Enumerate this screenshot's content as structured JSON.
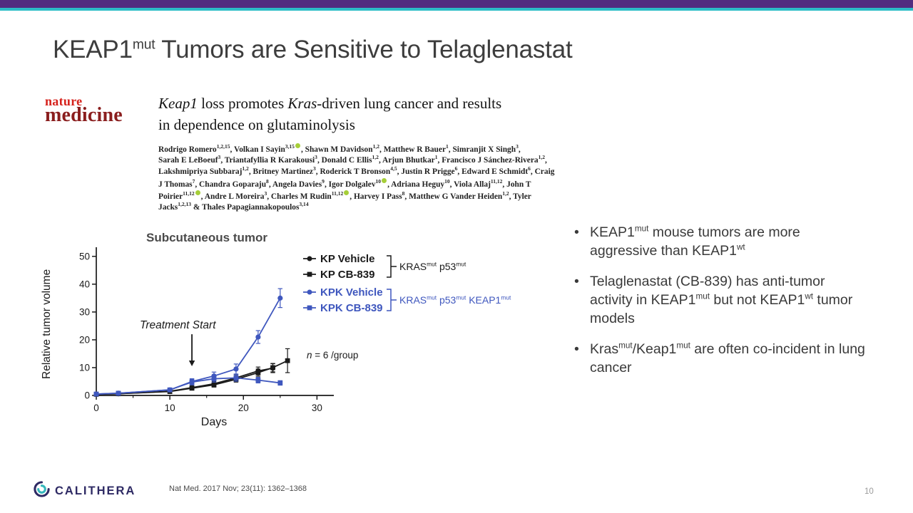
{
  "slide": {
    "title": "KEAP1^{mut} Tumors are Sensitive to Telaglenastat"
  },
  "theme": {
    "top_bar_color": "#522D80",
    "accent_line_color": "#2DBEC7",
    "title_color": "#3D3D3D",
    "text_color": "#3A3A3A",
    "nature_red": "#D6221C",
    "medicine_maroon": "#8A1E1E",
    "calithera_navy": "#2E2A64",
    "calithera_teal": "#35B7BC",
    "orcid_green": "#A6CE39"
  },
  "paper": {
    "journal_top": "nature",
    "journal_bottom": "medicine",
    "title_line1": "~{Keap1} loss promotes ~{Kras}-driven lung cancer and results",
    "title_line2": "in dependence on glutaminolysis",
    "author_lines": [
      "Rodrigo Romero^{1,2,15}, Volkan I Sayin^{3,15}@{}, Shawn M Davidson^{1,2}, Matthew R Bauer^{1}, Simranjit X Singh^{3},",
      "Sarah E LeBoeuf^{3}, Triantafyllia R Karakousi^{3}, Donald C Ellis^{1,2}, Arjun Bhutkar^{1}, Francisco J Sánchez-Rivera^{1,2},",
      "Lakshmipriya Subbaraj^{1,2}, Britney Martinez^{3}, Roderick T Bronson^{4,5}, Justin R Prigge^{6}, Edward E Schmidt^{6}, Craig",
      "J Thomas^{7}, Chandra Goparaju^{8}, Angela Davies^{9}, Igor Dolgalev^{10}@{}, Adriana Heguy^{10}, Viola Allaj^{11,12}, John T",
      "Poirier^{11,12}@{}, Andre L Moreira^{3}, Charles M Rudin^{11,12}@{}, Harvey I Pass^{8}, Matthew G Vander Heiden^{1,2}, Tyler",
      "Jacks^{1,2,13} & Thales Papagiannakopoulos^{3,14}"
    ]
  },
  "chart_data": {
    "type": "line",
    "title": "Subcutaneous tumor",
    "xlabel": "Days",
    "ylabel": "Relative tumor volume",
    "xlim": [
      0,
      32
    ],
    "ylim": [
      0,
      52
    ],
    "xticks": [
      0,
      10,
      20,
      30
    ],
    "xminor": [
      5,
      15,
      25
    ],
    "yticks": [
      0,
      10,
      20,
      30,
      40,
      50
    ],
    "grid": false,
    "legend_position": "upper-right-inside",
    "note": "~{n} = 6 /group",
    "annotation": {
      "label": "Treatment Start",
      "x": 13,
      "y_from": 22,
      "y_to": 10.5
    },
    "series": [
      {
        "name": "KP Vehicle",
        "color": "#1A1A1A",
        "marker": "circle",
        "x": [
          0,
          3,
          10,
          13,
          16,
          19,
          22,
          24
        ],
        "y": [
          0.4,
          0.6,
          1.5,
          2.8,
          4.2,
          6.3,
          8.8,
          9.8
        ],
        "err": [
          0.2,
          0.2,
          0.4,
          0.7,
          0.9,
          1.1,
          1.4,
          1.6
        ]
      },
      {
        "name": "KP CB-839",
        "color": "#1A1A1A",
        "marker": "square",
        "x": [
          0,
          3,
          10,
          13,
          16,
          19,
          22,
          24,
          26
        ],
        "y": [
          0.4,
          0.6,
          1.4,
          2.6,
          3.8,
          5.8,
          8.2,
          10,
          12.5
        ],
        "err": [
          0.2,
          0.2,
          0.4,
          0.6,
          0.8,
          1.0,
          1.3,
          1.5,
          4.3
        ]
      },
      {
        "name": "KPK Vehicle",
        "color": "#3F57BE",
        "marker": "circle",
        "x": [
          0,
          3,
          10,
          13,
          16,
          19,
          22,
          25
        ],
        "y": [
          0.5,
          0.8,
          2,
          5,
          7,
          9.5,
          21,
          35
        ],
        "err": [
          0.2,
          0.3,
          0.5,
          1.0,
          1.4,
          1.8,
          2.3,
          3.4
        ]
      },
      {
        "name": "KPK CB-839",
        "color": "#3F57BE",
        "marker": "square",
        "x": [
          0,
          3,
          10,
          13,
          16,
          19,
          22,
          25
        ],
        "y": [
          0.5,
          0.8,
          2,
          4.8,
          6,
          6.3,
          5.5,
          4.5
        ],
        "err": [
          0.2,
          0.3,
          0.5,
          1.0,
          1.2,
          1.2,
          1.0,
          0.8
        ]
      }
    ],
    "legend_groups": [
      {
        "label": "KRAS^{mut} p53^{mut}",
        "color": "#1A1A1A",
        "series_indexes": [
          0,
          1
        ]
      },
      {
        "label": "KRAS^{mut} p53^{mut} KEAP1^{mut}",
        "color": "#3F57BE",
        "series_indexes": [
          2,
          3
        ]
      }
    ]
  },
  "bullets": [
    {
      "text": "KEAP1^{mut} mouse tumors are more aggressive than KEAP1^{wt}"
    },
    {
      "text": "Telaglenastat (CB-839) has anti-tumor activity in KEAP1^{mut} but not KEAP1^{wt} tumor models"
    },
    {
      "text": "Kras^{mut}/Keap1^{mut} are often co-incident in lung cancer"
    }
  ],
  "footer": {
    "logo_text": "CALITHERA",
    "citation": "Nat Med. 2017 Nov; 23(11): 1362–1368",
    "page_number": "10"
  }
}
